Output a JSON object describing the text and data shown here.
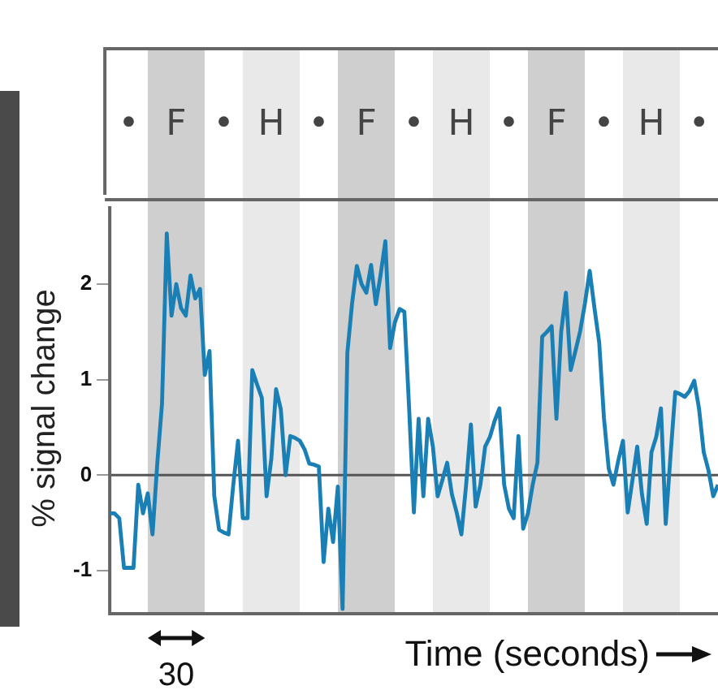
{
  "chart_data": {
    "type": "line",
    "xlabel": "Time (seconds)",
    "ylabel": "% signal change",
    "categories": [
      null,
      null,
      null,
      null,
      null,
      null,
      null,
      null,
      null,
      null,
      null,
      null,
      null,
      null,
      null,
      null,
      null,
      null,
      null,
      null,
      null,
      null,
      null,
      null,
      null,
      null,
      null,
      null,
      null,
      null,
      null,
      null,
      null,
      null,
      null,
      null,
      null,
      null,
      null,
      null,
      null,
      null,
      null,
      null,
      null,
      null,
      null,
      null,
      null,
      null,
      null,
      null,
      null,
      null,
      null,
      null,
      null,
      null,
      null,
      null,
      null,
      null,
      null,
      null,
      null,
      null,
      null,
      null,
      null,
      null,
      null,
      null,
      null,
      null,
      null,
      null,
      null,
      null,
      null,
      null,
      null,
      null,
      null,
      null,
      null,
      null,
      null,
      null,
      null,
      null,
      null,
      null,
      null,
      null,
      null,
      null,
      null,
      null,
      null,
      null,
      null,
      null,
      null,
      null,
      null,
      null,
      null,
      null,
      null,
      null,
      null,
      null,
      null,
      null,
      null,
      null,
      null,
      null,
      null,
      null,
      null,
      null,
      null,
      null,
      null,
      null,
      null,
      null,
      null
    ],
    "ylim": [
      -1.45,
      2.85
    ],
    "yticks": [
      -1,
      0,
      1,
      2
    ],
    "tick_labels": "y",
    "grid": false,
    "legend": false,
    "marker": "none",
    "line_style": "solid",
    "ref_lines": [
      {
        "axis": "y",
        "value": 0,
        "color": "#555555"
      }
    ],
    "annotations": [
      "•",
      "F",
      "•",
      "H",
      "•",
      "F",
      "•",
      "H",
      "•",
      "F",
      "•",
      "H",
      "•",
      "30"
    ],
    "series": [
      {
        "color": "#1a7fb5",
        "values": [
          -0.4,
          -0.4,
          -0.45,
          -0.97,
          -0.97,
          -0.97,
          -0.1,
          -0.4,
          -0.19,
          -0.62,
          0.12,
          0.75,
          2.53,
          1.67,
          2.0,
          1.75,
          1.67,
          2.09,
          1.85,
          1.95,
          1.05,
          1.3,
          -0.22,
          -0.57,
          -0.6,
          -0.62,
          -0.1,
          0.36,
          -0.45,
          -0.45,
          1.1,
          0.95,
          0.81,
          -0.22,
          0.17,
          0.9,
          0.69,
          0.0,
          0.41,
          0.39,
          0.36,
          0.27,
          0.12,
          0.11,
          0.09,
          -0.91,
          -0.35,
          -0.7,
          -0.12,
          -1.4,
          1.28,
          1.8,
          2.19,
          2.0,
          1.91,
          2.2,
          1.79,
          2.1,
          2.45,
          1.33,
          1.6,
          1.74,
          1.71,
          0.7,
          -0.39,
          0.59,
          -0.22,
          0.59,
          0.3,
          -0.22,
          -0.05,
          0.13,
          -0.2,
          -0.39,
          -0.62,
          -0.1,
          0.53,
          -0.33,
          -0.1,
          0.3,
          0.4,
          0.57,
          0.7,
          -0.1,
          -0.35,
          -0.45,
          0.41,
          -0.56,
          -0.4,
          -0.1,
          0.13,
          1.45,
          1.5,
          1.56,
          0.59,
          1.5,
          1.91,
          1.1,
          1.3,
          1.51,
          1.8,
          2.14,
          1.75,
          1.39,
          0.6,
          0.07,
          -0.1,
          0.15,
          0.36,
          -0.39,
          -0.05,
          0.3,
          -0.2,
          -0.51,
          0.24,
          0.4,
          0.7,
          -0.51,
          0.2,
          0.87,
          0.85,
          0.82,
          0.88,
          0.99,
          0.7,
          0.24,
          0.05,
          -0.22,
          -0.1
        ]
      }
    ]
  }
}
